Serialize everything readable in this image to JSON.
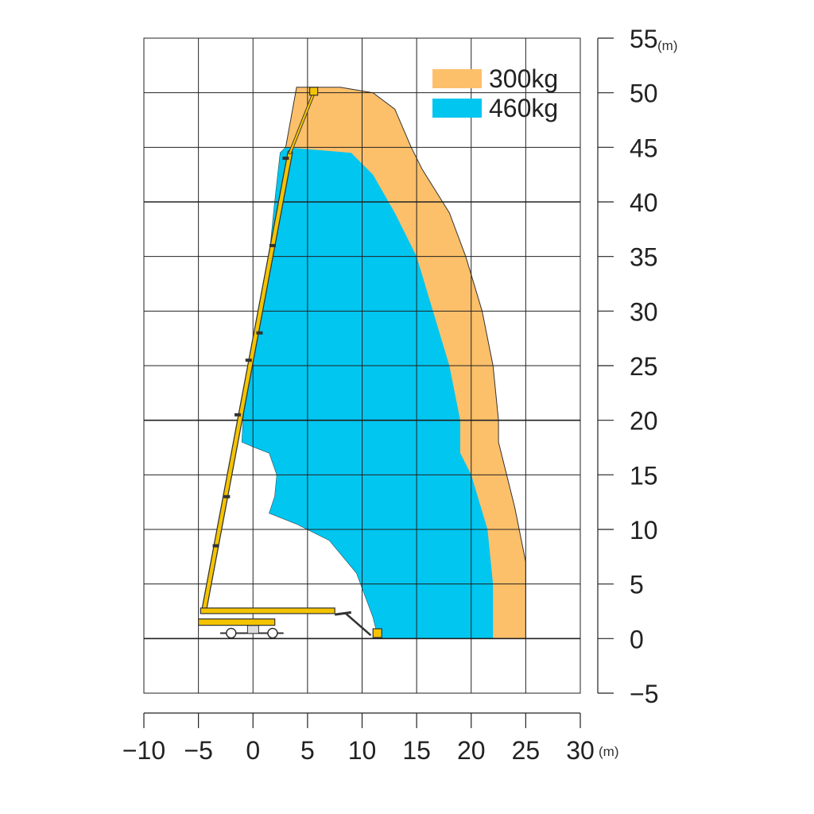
{
  "chart_data": {
    "type": "area",
    "title": "",
    "xlabel": "",
    "ylabel": "",
    "x_unit": "(m)",
    "y_unit": "(m)",
    "xlim": [
      -10,
      30
    ],
    "ylim": [
      -5,
      55
    ],
    "x_ticks": [
      -10,
      -5,
      0,
      5,
      10,
      15,
      20,
      25,
      30
    ],
    "y_ticks": [
      -5,
      0,
      5,
      10,
      15,
      20,
      25,
      30,
      35,
      40,
      45,
      50,
      55
    ],
    "x_tick_labels": [
      "−10",
      "−5",
      "0",
      "5",
      "10",
      "15",
      "20",
      "25",
      "30"
    ],
    "y_tick_labels": [
      "−5",
      "0",
      "5",
      "10",
      "15",
      "20",
      "25",
      "30",
      "35",
      "40",
      "45",
      "50",
      "55"
    ],
    "grid": true,
    "legend_position": "top-right",
    "series": [
      {
        "name": "300kg",
        "color": "#FDC06A",
        "points": [
          [
            11.5,
            0
          ],
          [
            25,
            0
          ],
          [
            25,
            7
          ],
          [
            24,
            12
          ],
          [
            22.5,
            18
          ],
          [
            22.5,
            20
          ],
          [
            22,
            25
          ],
          [
            21,
            30
          ],
          [
            19.5,
            35
          ],
          [
            18,
            39
          ],
          [
            15.5,
            43
          ],
          [
            14.5,
            45
          ],
          [
            13,
            48.5
          ],
          [
            11,
            50
          ],
          [
            8,
            50.5
          ],
          [
            4,
            50.5
          ],
          [
            3,
            45
          ],
          [
            2.5,
            44.5
          ],
          [
            2,
            40
          ],
          [
            1.5,
            35
          ],
          [
            0.5,
            30
          ],
          [
            -0.3,
            25
          ],
          [
            -0.9,
            20
          ],
          [
            -1,
            18
          ],
          [
            0.2,
            17.5
          ],
          [
            1.5,
            17
          ],
          [
            2.2,
            15
          ],
          [
            2,
            13
          ],
          [
            1.5,
            11.5
          ],
          [
            4,
            10.5
          ],
          [
            7,
            9
          ],
          [
            9.5,
            6
          ],
          [
            11,
            2
          ]
        ]
      },
      {
        "name": "460kg",
        "color": "#00C6F0",
        "points": [
          [
            11.5,
            0
          ],
          [
            22,
            0
          ],
          [
            22,
            5
          ],
          [
            21.5,
            10
          ],
          [
            20,
            15
          ],
          [
            19,
            17
          ],
          [
            19,
            20
          ],
          [
            18,
            25
          ],
          [
            16.5,
            30
          ],
          [
            15,
            35
          ],
          [
            13,
            39
          ],
          [
            11,
            42.5
          ],
          [
            9,
            44.5
          ],
          [
            3,
            45
          ],
          [
            2.5,
            44.5
          ],
          [
            2,
            40
          ],
          [
            1.5,
            35
          ],
          [
            0.5,
            30
          ],
          [
            -0.3,
            25
          ],
          [
            -0.9,
            20
          ],
          [
            -1,
            18
          ],
          [
            0.2,
            17.5
          ],
          [
            1.5,
            17
          ],
          [
            2.2,
            15
          ],
          [
            2,
            13
          ],
          [
            1.5,
            11.5
          ],
          [
            4,
            10.5
          ],
          [
            7,
            9
          ],
          [
            9.5,
            6
          ],
          [
            11,
            2
          ]
        ]
      }
    ]
  }
}
